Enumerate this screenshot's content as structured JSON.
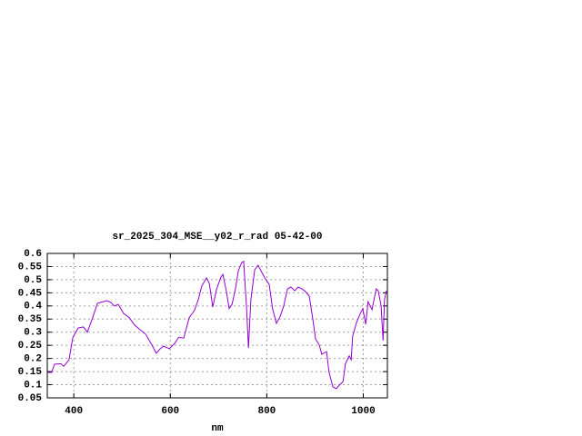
{
  "chart_data": {
    "type": "line",
    "title": "sr_2025_304_MSE__y02_r_rad 05-42-00",
    "x_label": "nm",
    "xlim": [
      345,
      1050
    ],
    "ylim": [
      0.05,
      0.6
    ],
    "xticks": [
      400,
      600,
      800,
      1000
    ],
    "yticks": [
      0.05,
      0.1,
      0.15,
      0.2,
      0.25,
      0.3,
      0.35,
      0.4,
      0.45,
      0.5,
      0.55,
      0.6
    ],
    "grid": true,
    "x": [
      345,
      354,
      360,
      373,
      379,
      390,
      398,
      409,
      420,
      428,
      439,
      449,
      458,
      469,
      477,
      484,
      492,
      503,
      515,
      526,
      537,
      549,
      560,
      571,
      579,
      586,
      598,
      609,
      617,
      628,
      639,
      650,
      658,
      665,
      675,
      681,
      688,
      696,
      705,
      709,
      716,
      722,
      728,
      735,
      741,
      748,
      752,
      758,
      762,
      767,
      775,
      782,
      790,
      797,
      805,
      812,
      820,
      828,
      835,
      843,
      850,
      858,
      865,
      873,
      880,
      888,
      895,
      901,
      909,
      914,
      924,
      929,
      937,
      944,
      950,
      958,
      963,
      971,
      975,
      978,
      986,
      994,
      999,
      1005,
      1010,
      1018,
      1027,
      1031,
      1037,
      1041,
      1044,
      1048
    ],
    "series": [
      {
        "color": "#9400d3",
        "values": [
          0.147,
          0.147,
          0.178,
          0.18,
          0.17,
          0.195,
          0.28,
          0.316,
          0.32,
          0.3,
          0.355,
          0.41,
          0.415,
          0.42,
          0.413,
          0.4,
          0.406,
          0.372,
          0.355,
          0.327,
          0.31,
          0.292,
          0.257,
          0.22,
          0.237,
          0.247,
          0.237,
          0.257,
          0.28,
          0.278,
          0.355,
          0.383,
          0.424,
          0.475,
          0.507,
          0.485,
          0.396,
          0.465,
          0.51,
          0.52,
          0.458,
          0.39,
          0.406,
          0.465,
          0.534,
          0.565,
          0.57,
          0.396,
          0.24,
          0.424,
          0.538,
          0.555,
          0.527,
          0.503,
          0.482,
          0.389,
          0.334,
          0.361,
          0.4,
          0.465,
          0.472,
          0.458,
          0.472,
          0.465,
          0.455,
          0.437,
          0.355,
          0.275,
          0.25,
          0.216,
          0.226,
          0.147,
          0.092,
          0.085,
          0.098,
          0.112,
          0.18,
          0.21,
          0.195,
          0.285,
          0.337,
          0.372,
          0.389,
          0.33,
          0.416,
          0.386,
          0.465,
          0.458,
          0.4,
          0.268,
          0.424,
          0.458
        ]
      }
    ]
  }
}
